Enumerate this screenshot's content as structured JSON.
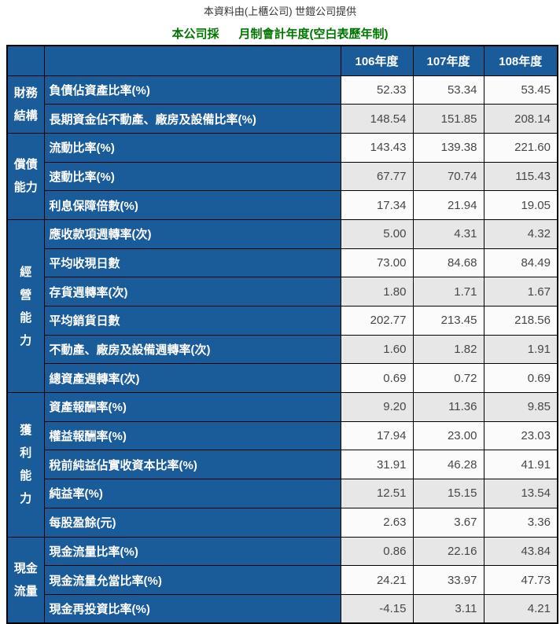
{
  "page": {
    "source_note": "本資料由(上櫃公司) 世鎧公司提供",
    "fiscal_year_note": "本公司採      月制會計年度(空白表歷年制)"
  },
  "colors": {
    "header_blue": "#1A5B99",
    "row_white": "#FBFBFB",
    "row_gray": "#E7E7E7",
    "note_green": "#007500",
    "value_text": "#474747",
    "border": "#000000"
  },
  "table": {
    "year_columns": [
      "106年度",
      "107年度",
      "108年度"
    ],
    "groups": [
      {
        "id": "financial-structure",
        "name": "財務結構",
        "label_lines": [
          "財務",
          "結構"
        ],
        "rows": [
          {
            "label": "負債佔資產比率(%)",
            "values": [
              "52.33",
              "53.34",
              "53.45"
            ],
            "shaded": false
          },
          {
            "label": "長期資金佔不動產、廠房及設備比率(%)",
            "values": [
              "148.54",
              "151.85",
              "208.14"
            ],
            "shaded": true
          }
        ]
      },
      {
        "id": "solvency",
        "name": "償債能力",
        "label_lines": [
          "償債",
          "能力"
        ],
        "rows": [
          {
            "label": "流動比率(%)",
            "values": [
              "143.43",
              "139.38",
              "221.60"
            ],
            "shaded": false
          },
          {
            "label": "速動比率(%)",
            "values": [
              "67.77",
              "70.74",
              "115.43"
            ],
            "shaded": true
          },
          {
            "label": "利息保障倍數(%)",
            "values": [
              "17.34",
              "21.94",
              "19.05"
            ],
            "shaded": false
          }
        ]
      },
      {
        "id": "operating-ability",
        "name": "經營能力",
        "label_lines": [
          "經",
          "營",
          "能",
          "力"
        ],
        "rows": [
          {
            "label": "應收款項週轉率(次)",
            "values": [
              "5.00",
              "4.31",
              "4.32"
            ],
            "shaded": true
          },
          {
            "label": "平均收現日數",
            "values": [
              "73.00",
              "84.68",
              "84.49"
            ],
            "shaded": false
          },
          {
            "label": "存貨週轉率(次)",
            "values": [
              "1.80",
              "1.71",
              "1.67"
            ],
            "shaded": true
          },
          {
            "label": "平均銷貨日數",
            "values": [
              "202.77",
              "213.45",
              "218.56"
            ],
            "shaded": false
          },
          {
            "label": "不動產、廠房及設備週轉率(次)",
            "values": [
              "1.60",
              "1.82",
              "1.91"
            ],
            "shaded": true
          },
          {
            "label": "總資產週轉率(次)",
            "values": [
              "0.69",
              "0.72",
              "0.69"
            ],
            "shaded": false
          }
        ]
      },
      {
        "id": "profitability",
        "name": "獲利能力",
        "label_lines": [
          "獲",
          "利",
          "能",
          "力"
        ],
        "rows": [
          {
            "label": "資產報酬率(%)",
            "values": [
              "9.20",
              "11.36",
              "9.85"
            ],
            "shaded": true
          },
          {
            "label": "權益報酬率(%)",
            "values": [
              "17.94",
              "23.00",
              "23.03"
            ],
            "shaded": false
          },
          {
            "label": "稅前純益佔實收資本比率(%)",
            "values": [
              "31.91",
              "46.28",
              "41.91"
            ],
            "shaded": false
          },
          {
            "label": "純益率(%)",
            "values": [
              "12.51",
              "15.15",
              "13.54"
            ],
            "shaded": true
          },
          {
            "label": "每股盈餘(元)",
            "values": [
              "2.63",
              "3.67",
              "3.36"
            ],
            "shaded": false
          }
        ]
      },
      {
        "id": "cash-flow",
        "name": "現金流量",
        "label_lines": [
          "現金",
          "流量"
        ],
        "rows": [
          {
            "label": "現金流量比率(%)",
            "values": [
              "0.86",
              "22.16",
              "43.84"
            ],
            "shaded": true
          },
          {
            "label": "現金流量允當比率(%)",
            "values": [
              "24.21",
              "33.97",
              "47.73"
            ],
            "shaded": false
          },
          {
            "label": "現金再投資比率(%)",
            "values": [
              "-4.15",
              "3.11",
              "4.21"
            ],
            "shaded": true
          }
        ]
      }
    ]
  }
}
